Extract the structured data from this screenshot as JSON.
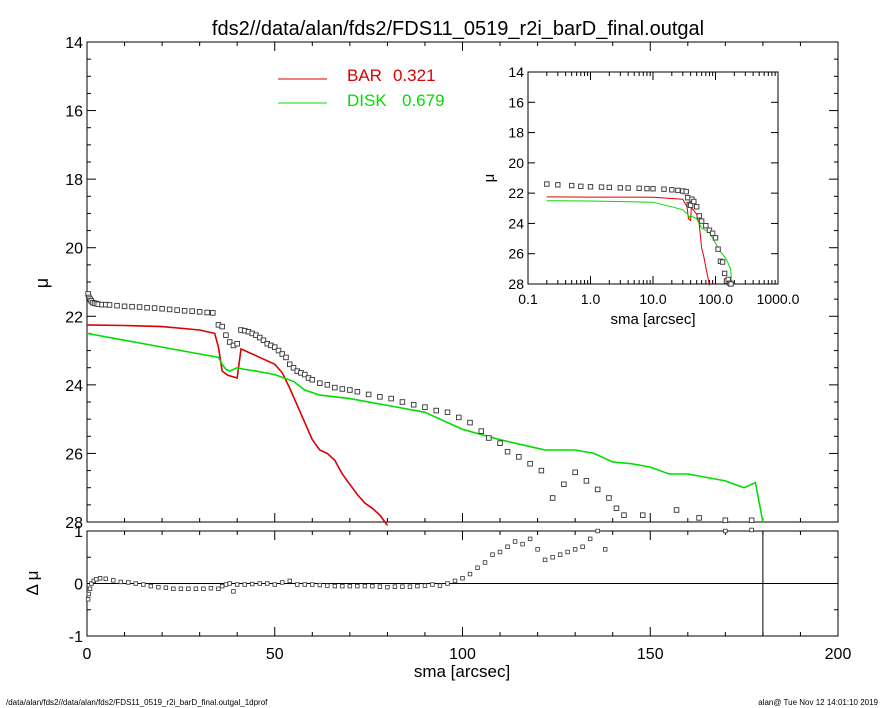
{
  "title": "fds2//data/alan/fds2/FDS11_0519_r2i_barD_final.outgal",
  "footer_left": "/data/alan/fds2//data/alan/fds2/FDS11_0519_r2i_barD_final.outgal_1dprof",
  "footer_right": "alan@  Tue Nov 12 14:01:10 2019",
  "legend": [
    {
      "label": "BAR",
      "value": "0.321",
      "color": "#dd0000"
    },
    {
      "label": "DISK",
      "value": "0.679",
      "color": "#00dd00"
    }
  ],
  "chart_data": [
    {
      "type": "scatter",
      "name": "main-profile",
      "ylabel": "μ",
      "xlim": [
        0,
        200
      ],
      "ylim": [
        28,
        14
      ],
      "yticks": [
        "14",
        "16",
        "18",
        "20",
        "22",
        "24",
        "26",
        "28"
      ],
      "grid": false,
      "legend_position": "top-center",
      "data_points": [
        [
          0.3,
          21.35
        ],
        [
          0.5,
          21.45
        ],
        [
          0.8,
          21.5
        ],
        [
          1.1,
          21.55
        ],
        [
          1.5,
          21.6
        ],
        [
          2,
          21.62
        ],
        [
          2.5,
          21.63
        ],
        [
          3,
          21.65
        ],
        [
          4,
          21.66
        ],
        [
          5,
          21.66
        ],
        [
          6,
          21.67
        ],
        [
          8,
          21.69
        ],
        [
          10,
          21.71
        ],
        [
          12,
          21.72
        ],
        [
          14,
          21.73
        ],
        [
          16,
          21.75
        ],
        [
          18,
          21.76
        ],
        [
          20,
          21.78
        ],
        [
          22,
          21.8
        ],
        [
          24,
          21.82
        ],
        [
          26,
          21.84
        ],
        [
          28,
          21.85
        ],
        [
          30,
          21.87
        ],
        [
          32,
          21.89
        ],
        [
          33.5,
          21.9
        ],
        [
          35,
          22.25
        ],
        [
          36,
          22.3
        ],
        [
          37,
          22.55
        ],
        [
          38,
          22.75
        ],
        [
          39,
          22.85
        ],
        [
          40,
          22.8
        ],
        [
          41,
          22.4
        ],
        [
          42,
          22.42
        ],
        [
          43,
          22.45
        ],
        [
          44,
          22.5
        ],
        [
          45,
          22.55
        ],
        [
          46,
          22.62
        ],
        [
          47,
          22.7
        ],
        [
          48,
          22.8
        ],
        [
          49,
          22.85
        ],
        [
          50,
          22.9
        ],
        [
          51,
          23.0
        ],
        [
          52,
          23.1
        ],
        [
          53,
          23.2
        ],
        [
          54,
          23.4
        ],
        [
          55,
          23.5
        ],
        [
          56,
          23.6
        ],
        [
          57,
          23.65
        ],
        [
          58,
          23.7
        ],
        [
          59,
          23.8
        ],
        [
          60,
          23.85
        ],
        [
          62,
          23.95
        ],
        [
          64,
          24.0
        ],
        [
          66,
          24.08
        ],
        [
          68,
          24.12
        ],
        [
          70,
          24.15
        ],
        [
          72,
          24.2
        ],
        [
          75,
          24.28
        ],
        [
          78,
          24.35
        ],
        [
          81,
          24.4
        ],
        [
          84,
          24.5
        ],
        [
          87,
          24.58
        ],
        [
          90,
          24.65
        ],
        [
          93,
          24.75
        ],
        [
          96,
          24.8
        ],
        [
          99,
          24.95
        ],
        [
          102,
          25.1
        ],
        [
          105,
          25.35
        ],
        [
          107,
          25.55
        ],
        [
          110,
          25.7
        ],
        [
          112,
          25.95
        ],
        [
          115,
          26.1
        ],
        [
          118,
          26.3
        ],
        [
          121,
          26.5
        ],
        [
          124,
          27.3
        ],
        [
          127,
          26.9
        ],
        [
          130,
          26.55
        ],
        [
          133,
          26.8
        ],
        [
          136,
          27.05
        ],
        [
          139,
          27.3
        ],
        [
          141,
          27.6
        ],
        [
          143,
          27.8
        ],
        [
          148,
          27.8
        ],
        [
          157,
          27.65
        ],
        [
          163,
          27.88
        ],
        [
          170,
          27.95
        ],
        [
          177,
          27.95
        ]
      ],
      "series": [
        {
          "color": "#dd0000",
          "x": [
            0,
            10,
            20,
            30,
            34,
            35,
            36,
            37.5,
            40,
            41,
            45,
            50,
            52,
            54,
            56,
            58,
            60,
            62,
            64,
            66,
            68,
            70,
            72,
            74,
            76,
            78,
            80
          ],
          "y": [
            22.25,
            22.27,
            22.3,
            22.4,
            22.5,
            22.9,
            23.6,
            23.72,
            23.8,
            22.95,
            23.15,
            23.4,
            23.65,
            24.1,
            24.6,
            25.1,
            25.6,
            25.9,
            26.0,
            26.2,
            26.6,
            26.9,
            27.2,
            27.45,
            27.6,
            27.8,
            28.1
          ]
        },
        {
          "color": "#00dd00",
          "x": [
            0,
            10,
            20,
            30,
            35,
            36,
            37,
            38,
            40,
            42,
            45,
            50,
            55,
            58,
            62,
            70,
            80,
            90,
            100,
            110,
            120,
            122,
            130,
            135,
            140,
            145,
            150,
            155,
            160,
            170,
            175,
            177,
            178,
            180
          ],
          "y": [
            22.5,
            22.7,
            22.9,
            23.1,
            23.2,
            23.4,
            23.55,
            23.6,
            23.5,
            23.55,
            23.6,
            23.7,
            23.9,
            24.15,
            24.3,
            24.4,
            24.6,
            24.8,
            25.3,
            25.6,
            25.85,
            25.9,
            25.9,
            26.0,
            26.25,
            26.3,
            26.4,
            26.6,
            26.6,
            26.8,
            27.0,
            26.9,
            26.85,
            28.0
          ]
        }
      ]
    },
    {
      "type": "scatter",
      "name": "residuals",
      "xlabel": "sma [arcsec]",
      "ylabel": "Δ μ",
      "xlim": [
        0,
        200
      ],
      "ylim": [
        -1.0,
        1.0
      ],
      "xticks": [
        "0",
        "50",
        "100",
        "150",
        "200"
      ],
      "yticks": [
        "-1",
        "0",
        "1"
      ],
      "zero_line": true,
      "vertical_marker_x": 180,
      "data_points": [
        [
          0.3,
          -0.3
        ],
        [
          0.5,
          -0.2
        ],
        [
          0.8,
          -0.1
        ],
        [
          1.2,
          0.0
        ],
        [
          1.8,
          0.05
        ],
        [
          2.5,
          0.08
        ],
        [
          3.5,
          0.1
        ],
        [
          5,
          0.09
        ],
        [
          7,
          0.06
        ],
        [
          9,
          0.03
        ],
        [
          11,
          0.02
        ],
        [
          13,
          0.0
        ],
        [
          15,
          -0.02
        ],
        [
          17,
          -0.05
        ],
        [
          19,
          -0.07
        ],
        [
          21,
          -0.08
        ],
        [
          23,
          -0.1
        ],
        [
          25,
          -0.1
        ],
        [
          27,
          -0.1
        ],
        [
          29,
          -0.1
        ],
        [
          31,
          -0.1
        ],
        [
          33,
          -0.09
        ],
        [
          35,
          -0.1
        ],
        [
          36,
          -0.05
        ],
        [
          37,
          -0.02
        ],
        [
          38,
          0.0
        ],
        [
          39,
          -0.15
        ],
        [
          40,
          -0.02
        ],
        [
          42,
          -0.02
        ],
        [
          44,
          -0.01
        ],
        [
          46,
          0.0
        ],
        [
          48,
          0.0
        ],
        [
          50,
          -0.02
        ],
        [
          52,
          0.02
        ],
        [
          54,
          0.05
        ],
        [
          56,
          -0.02
        ],
        [
          58,
          -0.02
        ],
        [
          60,
          -0.02
        ],
        [
          62,
          -0.03
        ],
        [
          64,
          -0.04
        ],
        [
          66,
          -0.05
        ],
        [
          68,
          -0.05
        ],
        [
          70,
          -0.05
        ],
        [
          72,
          -0.05
        ],
        [
          74,
          -0.05
        ],
        [
          76,
          -0.05
        ],
        [
          78,
          -0.06
        ],
        [
          80,
          -0.07
        ],
        [
          82,
          -0.06
        ],
        [
          84,
          -0.06
        ],
        [
          86,
          -0.06
        ],
        [
          88,
          -0.05
        ],
        [
          90,
          -0.04
        ],
        [
          92,
          -0.02
        ],
        [
          94,
          -0.04
        ],
        [
          96,
          0.0
        ],
        [
          98,
          0.05
        ],
        [
          100,
          0.1
        ],
        [
          102,
          0.18
        ],
        [
          104,
          0.3
        ],
        [
          106,
          0.4
        ],
        [
          108,
          0.55
        ],
        [
          110,
          0.6
        ],
        [
          112,
          0.7
        ],
        [
          114,
          0.8
        ],
        [
          116,
          0.75
        ],
        [
          118,
          0.85
        ],
        [
          120,
          0.65
        ],
        [
          122,
          0.45
        ],
        [
          124,
          0.5
        ],
        [
          126,
          0.55
        ],
        [
          128,
          0.6
        ],
        [
          130,
          0.65
        ],
        [
          132,
          0.7
        ],
        [
          134,
          0.85
        ],
        [
          136,
          1.0
        ],
        [
          138,
          0.65
        ],
        [
          170,
          1.0
        ],
        [
          177,
          1.02
        ]
      ]
    },
    {
      "type": "scatter",
      "name": "inset-log-profile",
      "xlabel": "sma [arcsec]",
      "ylabel": "μ",
      "xscale": "log",
      "xlim": [
        0.1,
        1000
      ],
      "ylim": [
        28,
        14
      ],
      "xticks": [
        "0.1",
        "1.0",
        "10.0",
        "100.0",
        "1000.0"
      ],
      "yticks": [
        "14",
        "16",
        "18",
        "20",
        "22",
        "24",
        "26",
        "28"
      ],
      "data_points": [
        [
          0.2,
          21.4
        ],
        [
          0.3,
          21.45
        ],
        [
          0.5,
          21.5
        ],
        [
          0.7,
          21.55
        ],
        [
          1,
          21.58
        ],
        [
          1.5,
          21.6
        ],
        [
          2,
          21.62
        ],
        [
          3,
          21.65
        ],
        [
          4,
          21.66
        ],
        [
          6,
          21.68
        ],
        [
          8,
          21.7
        ],
        [
          10,
          21.71
        ],
        [
          15,
          21.74
        ],
        [
          20,
          21.78
        ],
        [
          25,
          21.82
        ],
        [
          30,
          21.86
        ],
        [
          34,
          21.9
        ],
        [
          36,
          22.3
        ],
        [
          38,
          22.75
        ],
        [
          40,
          22.8
        ],
        [
          42,
          22.4
        ],
        [
          45,
          22.55
        ],
        [
          50,
          22.9
        ],
        [
          55,
          23.5
        ],
        [
          60,
          23.85
        ],
        [
          70,
          24.15
        ],
        [
          80,
          24.45
        ],
        [
          90,
          24.65
        ],
        [
          100,
          24.95
        ],
        [
          110,
          25.7
        ],
        [
          120,
          26.5
        ],
        [
          130,
          26.55
        ],
        [
          140,
          27.3
        ],
        [
          150,
          27.8
        ],
        [
          160,
          27.7
        ],
        [
          170,
          27.95
        ],
        [
          177,
          28.0
        ]
      ],
      "series": [
        {
          "color": "#dd0000",
          "x": [
            0.2,
            1,
            10,
            30,
            35,
            37,
            40,
            41,
            45,
            50,
            55,
            60,
            65,
            70,
            75,
            80
          ],
          "y": [
            22.25,
            22.26,
            22.27,
            22.4,
            22.9,
            23.7,
            23.8,
            22.95,
            23.15,
            23.4,
            24.1,
            25.6,
            26.2,
            26.9,
            27.5,
            28.1
          ]
        },
        {
          "color": "#00dd00",
          "x": [
            0.2,
            1,
            10,
            20,
            30,
            36,
            38,
            40,
            45,
            50,
            60,
            80,
            100,
            120,
            150,
            175,
            180
          ],
          "y": [
            22.5,
            22.52,
            22.6,
            22.9,
            23.1,
            23.4,
            23.6,
            23.5,
            23.6,
            23.7,
            24.3,
            24.6,
            25.3,
            25.85,
            26.4,
            27.0,
            28.0
          ]
        }
      ]
    }
  ]
}
